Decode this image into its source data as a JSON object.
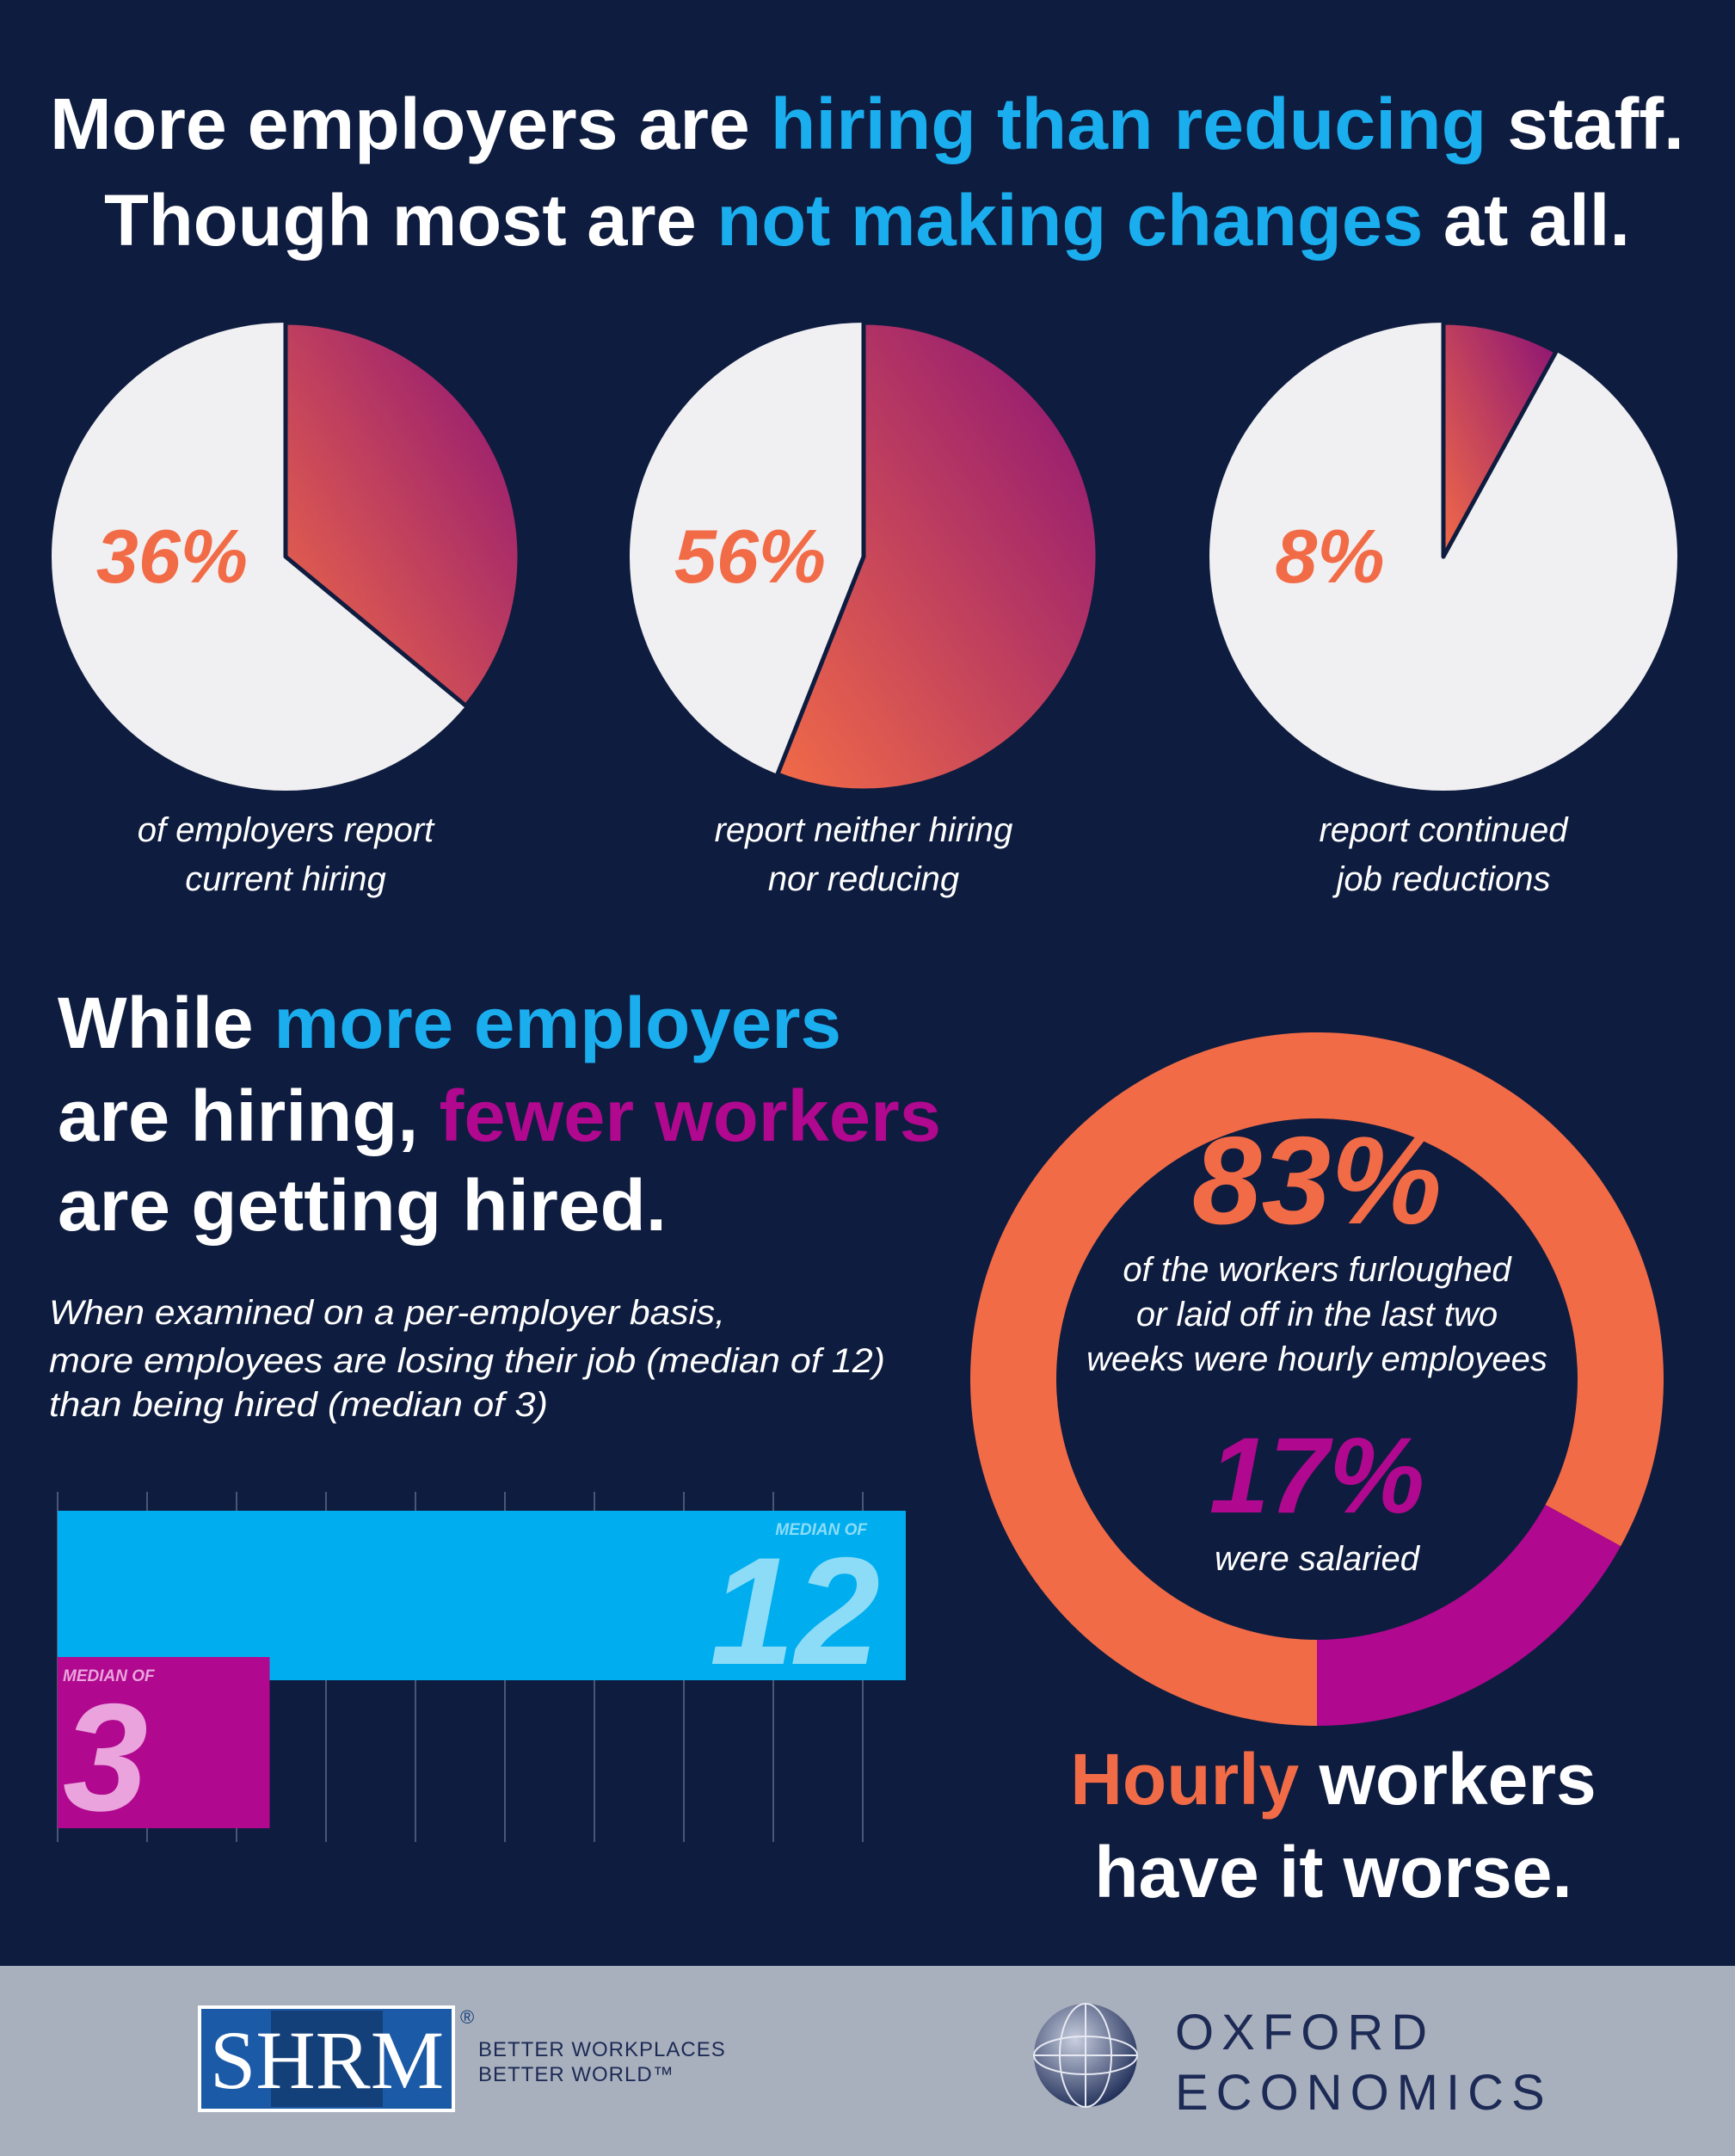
{
  "headline": {
    "line1": {
      "before": "More employers are",
      "highlight": "hiring than reducing",
      "after": "staff."
    },
    "line2": {
      "before": "Though most are",
      "highlight": "not making changes",
      "after": "at all."
    }
  },
  "section": {
    "heading": {
      "line1": {
        "before": "While",
        "highlight": "more employers"
      },
      "line2": {
        "before": "are hiring,",
        "highlight": "fewer workers"
      },
      "line3": "are getting hired."
    },
    "note": [
      "When examined on a per-employer basis,",
      "more employees are losing their job (median of 12)",
      "than being hired (median of 3)"
    ]
  },
  "conclusion": {
    "line1": {
      "highlight": "Hourly",
      "after": "workers"
    },
    "line2": "have it worse."
  },
  "footer": {
    "shrm": {
      "logo": "SHRM",
      "mark": "®",
      "tagline": [
        "BETTER WORKPLACES",
        "BETTER WORLD™"
      ]
    },
    "oxford": [
      "OXFORD",
      "ECONOMICS"
    ]
  },
  "chart_data": [
    {
      "type": "pie",
      "values": [
        36
      ],
      "value_labels": [
        "36%"
      ],
      "caption": [
        "of employers report",
        "current hiring"
      ]
    },
    {
      "type": "pie",
      "values": [
        56
      ],
      "value_labels": [
        "56%"
      ],
      "caption": [
        "report neither hiring",
        "nor reducing"
      ]
    },
    {
      "type": "pie",
      "values": [
        8
      ],
      "value_labels": [
        "8%"
      ],
      "caption": [
        "report continued",
        "job reductions"
      ]
    },
    {
      "type": "bar",
      "values": [
        12,
        3
      ],
      "labels": [
        "MEDIAN OF",
        "MEDIAN OF"
      ],
      "colors": [
        "#00aeef",
        "#b0088f"
      ],
      "xlim": [
        0,
        12
      ]
    },
    {
      "type": "donut",
      "values": [
        83,
        17
      ],
      "value_labels": [
        "83%",
        "17%"
      ],
      "colors": [
        "#f26b47",
        "#b0088f"
      ],
      "captions": [
        [
          "of the workers furloughed",
          "or laid off in the last two",
          "weeks were hourly employees"
        ],
        [
          "were salaried"
        ]
      ]
    }
  ]
}
